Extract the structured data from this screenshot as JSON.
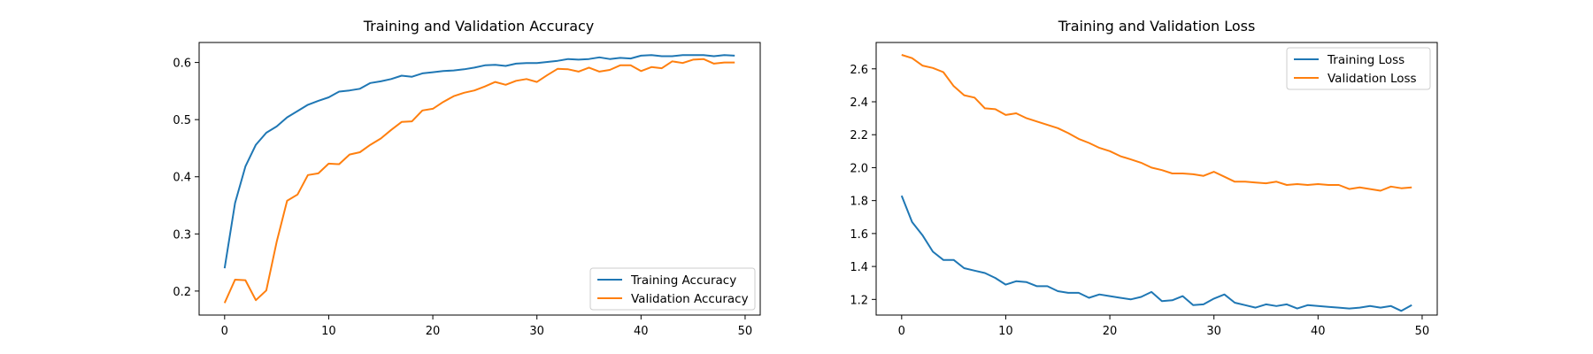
{
  "colors": {
    "series1": "#1f77b4",
    "series2": "#ff7f0e"
  },
  "chart_data": [
    {
      "type": "line",
      "title": "Training and Validation Accuracy",
      "xlabel": "",
      "ylabel": "",
      "xlim": [
        -2.45,
        51.45
      ],
      "ylim": [
        0.158,
        0.635
      ],
      "xticks": [
        0,
        10,
        20,
        30,
        40,
        50
      ],
      "yticks": [
        0.2,
        0.3,
        0.4,
        0.5,
        0.6
      ],
      "xtick_labels": [
        "0",
        "10",
        "20",
        "30",
        "40",
        "50"
      ],
      "ytick_labels": [
        "0.2",
        "0.3",
        "0.4",
        "0.5",
        "0.6"
      ],
      "grid": false,
      "legend_position": "lower-right",
      "x": [
        0,
        1,
        2,
        3,
        4,
        5,
        6,
        7,
        8,
        9,
        10,
        11,
        12,
        13,
        14,
        15,
        16,
        17,
        18,
        19,
        20,
        21,
        22,
        23,
        24,
        25,
        26,
        27,
        28,
        29,
        30,
        31,
        32,
        33,
        34,
        35,
        36,
        37,
        38,
        39,
        40,
        41,
        42,
        43,
        44,
        45,
        46,
        47,
        48,
        49
      ],
      "series": [
        {
          "name": "Training Accuracy",
          "color": "#1f77b4",
          "values": [
            0.24,
            0.354,
            0.418,
            0.456,
            0.477,
            0.488,
            0.504,
            0.515,
            0.526,
            0.533,
            0.539,
            0.549,
            0.551,
            0.554,
            0.564,
            0.567,
            0.571,
            0.577,
            0.575,
            0.581,
            0.583,
            0.585,
            0.586,
            0.588,
            0.591,
            0.595,
            0.596,
            0.594,
            0.598,
            0.599,
            0.599,
            0.601,
            0.603,
            0.606,
            0.605,
            0.606,
            0.609,
            0.606,
            0.608,
            0.607,
            0.612,
            0.613,
            0.611,
            0.611,
            0.613,
            0.613,
            0.613,
            0.611,
            0.613,
            0.612
          ]
        },
        {
          "name": "Validation Accuracy",
          "color": "#ff7f0e",
          "values": [
            0.179,
            0.22,
            0.219,
            0.184,
            0.201,
            0.286,
            0.358,
            0.369,
            0.403,
            0.406,
            0.423,
            0.422,
            0.439,
            0.443,
            0.456,
            0.467,
            0.482,
            0.496,
            0.497,
            0.516,
            0.519,
            0.531,
            0.541,
            0.547,
            0.551,
            0.558,
            0.566,
            0.561,
            0.568,
            0.571,
            0.566,
            0.578,
            0.589,
            0.588,
            0.584,
            0.591,
            0.584,
            0.587,
            0.595,
            0.595,
            0.585,
            0.592,
            0.59,
            0.602,
            0.599,
            0.605,
            0.606,
            0.598,
            0.6,
            0.6
          ]
        }
      ]
    },
    {
      "type": "line",
      "title": "Training and Validation Loss",
      "xlabel": "",
      "ylabel": "",
      "xlim": [
        -2.45,
        51.45
      ],
      "ylim": [
        1.105,
        2.76
      ],
      "xticks": [
        0,
        10,
        20,
        30,
        40,
        50
      ],
      "yticks": [
        1.2,
        1.4,
        1.6,
        1.8,
        2.0,
        2.2,
        2.4,
        2.6
      ],
      "xtick_labels": [
        "0",
        "10",
        "20",
        "30",
        "40",
        "50"
      ],
      "ytick_labels": [
        "1.2",
        "1.4",
        "1.6",
        "1.8",
        "2.0",
        "2.2",
        "2.4",
        "2.6"
      ],
      "grid": false,
      "legend_position": "upper-right",
      "x": [
        0,
        1,
        2,
        3,
        4,
        5,
        6,
        7,
        8,
        9,
        10,
        11,
        12,
        13,
        14,
        15,
        16,
        17,
        18,
        19,
        20,
        21,
        22,
        23,
        24,
        25,
        26,
        27,
        28,
        29,
        30,
        31,
        32,
        33,
        34,
        35,
        36,
        37,
        38,
        39,
        40,
        41,
        42,
        43,
        44,
        45,
        46,
        47,
        48,
        49
      ],
      "series": [
        {
          "name": "Training Loss",
          "color": "#1f77b4",
          "values": [
            1.83,
            1.67,
            1.59,
            1.49,
            1.44,
            1.44,
            1.39,
            1.375,
            1.36,
            1.33,
            1.29,
            1.31,
            1.305,
            1.28,
            1.28,
            1.25,
            1.24,
            1.24,
            1.21,
            1.23,
            1.22,
            1.21,
            1.2,
            1.215,
            1.245,
            1.19,
            1.195,
            1.22,
            1.165,
            1.17,
            1.205,
            1.23,
            1.18,
            1.165,
            1.15,
            1.17,
            1.16,
            1.17,
            1.145,
            1.165,
            1.16,
            1.155,
            1.15,
            1.145,
            1.15,
            1.16,
            1.15,
            1.16,
            1.13,
            1.165
          ]
        },
        {
          "name": "Validation Loss",
          "color": "#ff7f0e",
          "values": [
            2.685,
            2.665,
            2.62,
            2.605,
            2.58,
            2.495,
            2.44,
            2.425,
            2.36,
            2.355,
            2.32,
            2.33,
            2.3,
            2.28,
            2.26,
            2.24,
            2.21,
            2.175,
            2.15,
            2.12,
            2.1,
            2.07,
            2.05,
            2.03,
            2.0,
            1.985,
            1.965,
            1.965,
            1.96,
            1.95,
            1.975,
            1.945,
            1.915,
            1.915,
            1.91,
            1.905,
            1.915,
            1.895,
            1.9,
            1.895,
            1.9,
            1.895,
            1.895,
            1.87,
            1.88,
            1.87,
            1.86,
            1.885,
            1.875,
            1.88
          ]
        }
      ]
    }
  ]
}
